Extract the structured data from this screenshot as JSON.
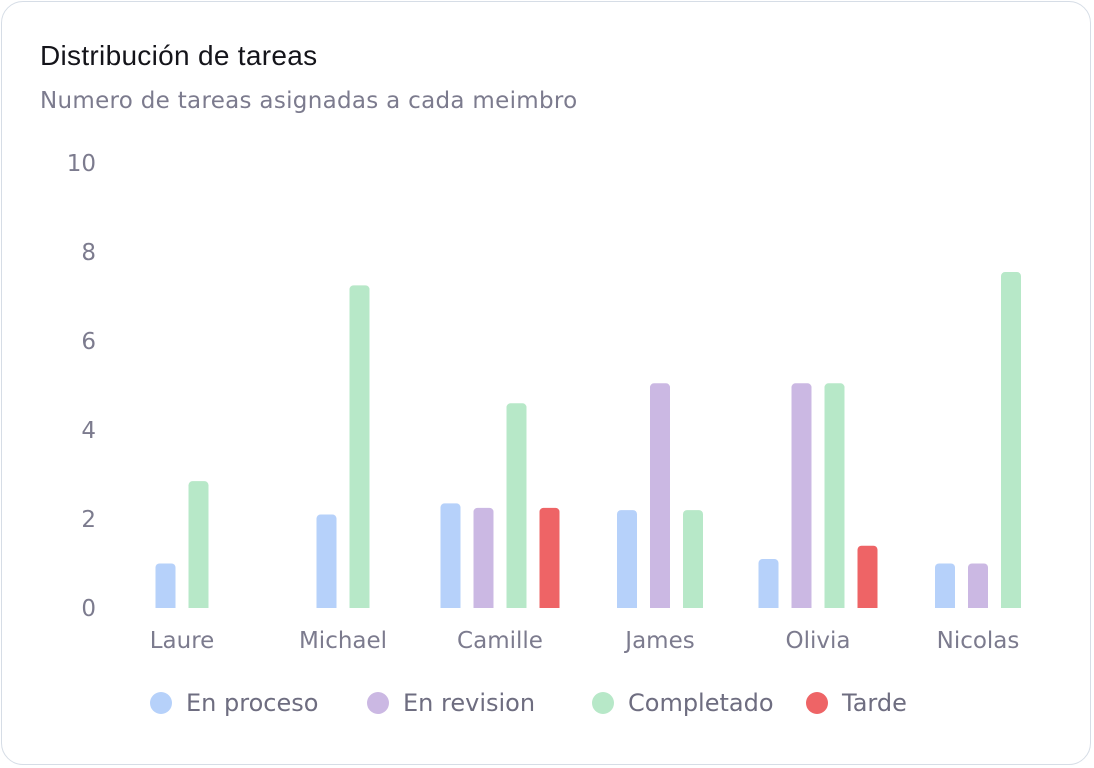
{
  "card": {
    "title": "Distribución de tareas",
    "subtitle": "Numero de tareas asignadas a cada meimbro"
  },
  "chart_data": {
    "type": "bar",
    "title": "Distribución de tareas",
    "subtitle": "Numero de tareas asignadas a cada meimbro",
    "categories": [
      "Laure",
      "Michael",
      "Camille",
      "James",
      "Olivia",
      "Nicolas"
    ],
    "yticks": [
      "0",
      "2",
      "4",
      "6",
      "8",
      "10"
    ],
    "ylim": [
      0,
      10
    ],
    "grid": false,
    "legend_position": "bottom",
    "series": [
      {
        "name": "En proceso",
        "color": "#b6d1fa",
        "values": [
          1.0,
          2.1,
          2.35,
          2.2,
          1.1,
          1.0
        ]
      },
      {
        "name": "En revision",
        "color": "#cbb8e3",
        "values": [
          0,
          0,
          2.25,
          5.05,
          5.05,
          1.0
        ]
      },
      {
        "name": "Completado",
        "color": "#b7e8c8",
        "values": [
          2.85,
          7.25,
          4.6,
          2.2,
          5.05,
          7.55
        ]
      },
      {
        "name": "Tarde",
        "color": "#ee6466",
        "values": [
          0,
          0,
          2.25,
          0,
          1.4,
          0
        ]
      }
    ]
  }
}
